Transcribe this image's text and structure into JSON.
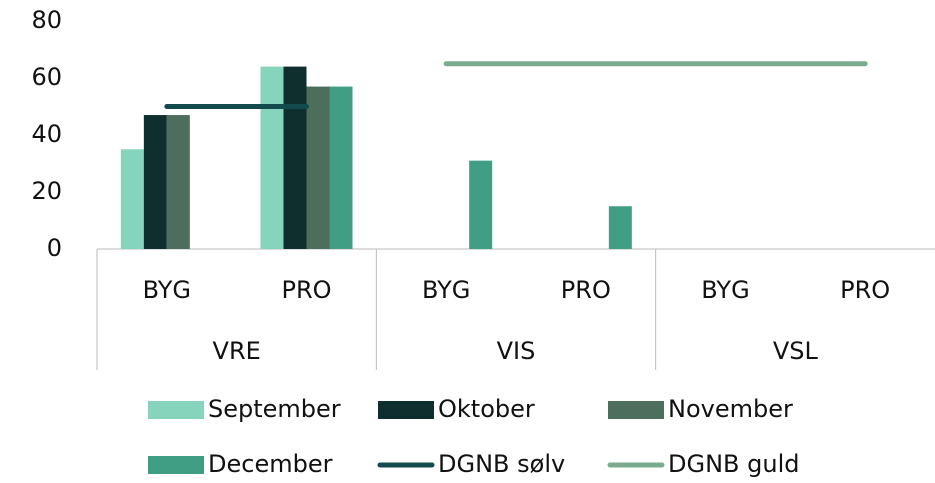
{
  "chart_data": {
    "type": "bar",
    "categories": [
      "BYG",
      "PRO",
      "BYG",
      "PRO",
      "BYG",
      "PRO"
    ],
    "groups": [
      "VRE",
      "VIS",
      "VSL"
    ],
    "series": [
      {
        "name": "September",
        "color": "#86d4bc",
        "values": [
          35,
          64,
          null,
          null,
          null,
          null
        ]
      },
      {
        "name": "Oktober",
        "color": "#0f2e2e",
        "values": [
          47,
          64,
          null,
          null,
          null,
          null
        ]
      },
      {
        "name": "November",
        "color": "#4d6e5d",
        "values": [
          47,
          57,
          null,
          null,
          null,
          null
        ]
      },
      {
        "name": "December",
        "color": "#3f9e83",
        "values": [
          null,
          57,
          31,
          15,
          null,
          null
        ]
      },
      {
        "name": "DGNB sølv",
        "type": "line",
        "color": "#124a4e",
        "values": [
          50,
          50,
          null,
          null,
          null,
          null
        ]
      },
      {
        "name": "DGNB guld",
        "type": "line",
        "color": "#7aab8f",
        "values": [
          null,
          null,
          65,
          65,
          65,
          65
        ]
      }
    ],
    "ylim": [
      0,
      80
    ],
    "yticks": [
      0,
      20,
      40,
      60,
      80
    ],
    "grid": false,
    "legend": "bottom"
  }
}
